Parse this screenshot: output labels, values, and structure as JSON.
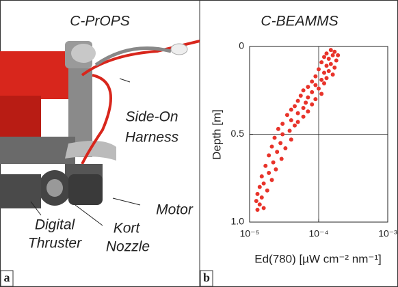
{
  "panel_a": {
    "label": "a",
    "title": "C-PrOPS",
    "annotations": [
      [
        "Side-On",
        "Harness"
      ],
      [
        "Motor"
      ],
      [
        "Kort",
        "Nozzle"
      ],
      [
        "Digital",
        "Thruster"
      ]
    ]
  },
  "panel_b": {
    "label": "b"
  },
  "chart_data": {
    "type": "scatter",
    "title": "C-BEAMMS",
    "ylabel": "Depth [m]",
    "xlabel": "Ed(780) [µW cm⁻² nm⁻¹]",
    "color": "#e8332a",
    "x_log": true,
    "y_inverted": true,
    "grid": true,
    "xlim": [
      1e-05,
      0.001
    ],
    "xticks": [
      {
        "value": 1e-05,
        "label": "10⁻⁵"
      },
      {
        "value": 0.0001,
        "label": "10⁻⁴"
      },
      {
        "value": 0.001,
        "label": "10⁻³"
      }
    ],
    "ylim": [
      0,
      1
    ],
    "yticks": [
      0,
      0.5,
      {
        "value": 1,
        "label": "1.0"
      }
    ],
    "x": [
      0.00015,
      0.00017,
      0.00013,
      0.00016,
      0.00019,
      0.00012,
      0.00014,
      0.00018,
      0.00011,
      0.00015,
      0.00013,
      0.00017,
      0.0001,
      0.00014,
      0.00012,
      0.00016,
      9e-05,
      0.00013,
      0.00011,
      8e-05,
      0.00012,
      9e-05,
      7e-05,
      0.0001,
      6e-05,
      8e-05,
      0.00011,
      5.5e-05,
      7e-05,
      9e-05,
      5e-05,
      6.5e-05,
      8e-05,
      4.5e-05,
      6e-05,
      4e-05,
      7e-05,
      5e-05,
      3.5e-05,
      6e-05,
      4e-05,
      5e-05,
      3e-05,
      4.5e-05,
      2.6e-05,
      3.8e-05,
      3e-05,
      2.3e-05,
      4e-05,
      2.8e-05,
      2.1e-05,
      3.3e-05,
      2.5e-05,
      1.9e-05,
      2.9e-05,
      2.2e-05,
      1.7e-05,
      2.4e-05,
      1.9e-05,
      1.5e-05,
      2.1e-05,
      1.6e-05,
      1.4e-05,
      1.8e-05,
      1.3e-05,
      1.5e-05,
      1.25e-05,
      1.4e-05,
      1.6e-05,
      1.3e-05
    ],
    "values": [
      0.02,
      0.03,
      0.04,
      0.05,
      0.05,
      0.06,
      0.07,
      0.08,
      0.09,
      0.1,
      0.11,
      0.12,
      0.13,
      0.14,
      0.15,
      0.16,
      0.17,
      0.18,
      0.19,
      0.2,
      0.21,
      0.22,
      0.23,
      0.24,
      0.25,
      0.26,
      0.27,
      0.28,
      0.29,
      0.3,
      0.31,
      0.32,
      0.33,
      0.34,
      0.35,
      0.36,
      0.37,
      0.38,
      0.39,
      0.4,
      0.42,
      0.43,
      0.44,
      0.45,
      0.47,
      0.48,
      0.5,
      0.52,
      0.53,
      0.55,
      0.57,
      0.58,
      0.6,
      0.62,
      0.64,
      0.66,
      0.68,
      0.7,
      0.72,
      0.74,
      0.76,
      0.78,
      0.8,
      0.82,
      0.84,
      0.86,
      0.88,
      0.9,
      0.92,
      0.93
    ]
  }
}
